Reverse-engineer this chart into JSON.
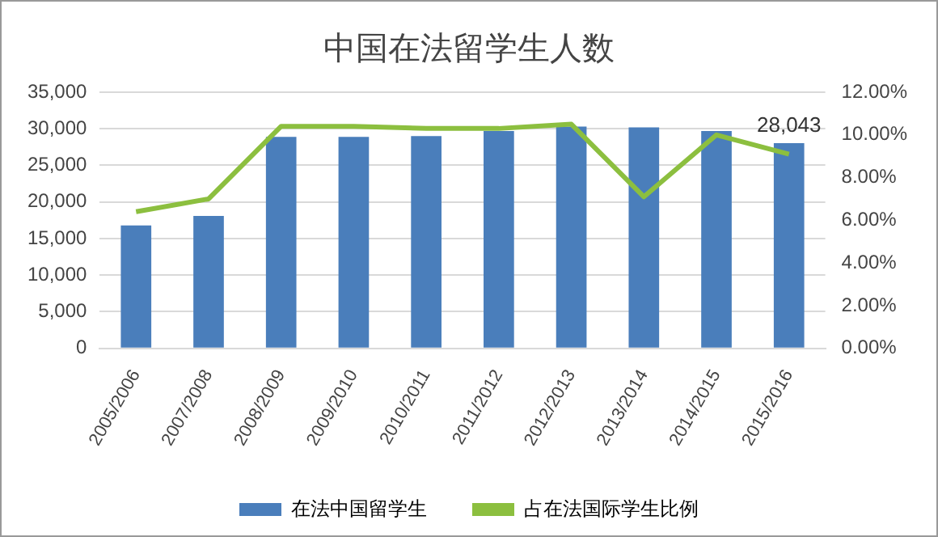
{
  "chart_data": {
    "type": "bar",
    "title": "中国在法留学生人数",
    "categories": [
      "2005/2006",
      "2007/2008",
      "2008/2009",
      "2009/2010",
      "2010/2011",
      "2011/2012",
      "2012/2013",
      "2013/2014",
      "2014/2015",
      "2015/2016"
    ],
    "series": [
      {
        "name": "在法中国留学生",
        "color": "#4a7ebb",
        "values": [
          16800,
          18100,
          28900,
          28900,
          29000,
          29700,
          30300,
          30200,
          29700,
          28043
        ],
        "value_labels": [
          null,
          null,
          null,
          null,
          null,
          null,
          null,
          null,
          null,
          "28,043"
        ]
      },
      {
        "name": "占在法国际学生比例",
        "type": "line",
        "axis": "y2",
        "color": "#8cbf3f",
        "values": [
          6.4,
          7.0,
          10.4,
          10.4,
          10.3,
          10.3,
          10.5,
          7.1,
          10.0,
          9.1
        ]
      }
    ],
    "ylim": [
      0,
      35000
    ],
    "yticks": [
      {
        "value": 0,
        "label": "0"
      },
      {
        "value": 5000,
        "label": "5,000"
      },
      {
        "value": 10000,
        "label": "10,000"
      },
      {
        "value": 15000,
        "label": "15,000"
      },
      {
        "value": 20000,
        "label": "20,000"
      },
      {
        "value": 25000,
        "label": "25,000"
      },
      {
        "value": 30000,
        "label": "30,000"
      },
      {
        "value": 35000,
        "label": "35,000"
      }
    ],
    "y2lim": [
      0,
      12
    ],
    "y2ticks": [
      {
        "value": 0,
        "label": "0.00%"
      },
      {
        "value": 2,
        "label": "2.00%"
      },
      {
        "value": 4,
        "label": "4.00%"
      },
      {
        "value": 6,
        "label": "6.00%"
      },
      {
        "value": 8,
        "label": "8.00%"
      },
      {
        "value": 10,
        "label": "10.00%"
      },
      {
        "value": 12,
        "label": "12.00%"
      }
    ],
    "grid": "y",
    "legend": "bottom",
    "marker": "none"
  }
}
